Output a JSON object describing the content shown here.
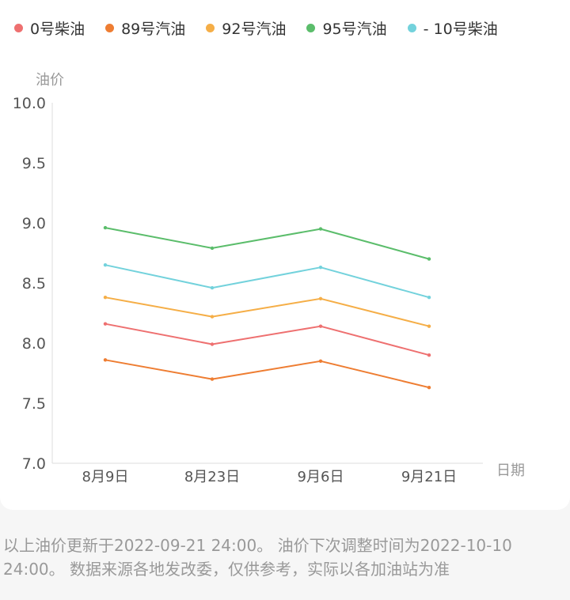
{
  "chart_data": {
    "type": "line",
    "xlabel": "日期",
    "ylabel": "油价",
    "ylim": [
      7.0,
      10.0
    ],
    "yticks": [
      "7.0",
      "7.5",
      "8.0",
      "8.5",
      "9.0",
      "9.5",
      "10.0"
    ],
    "categories": [
      "8月9日",
      "8月23日",
      "9月6日",
      "9月21日"
    ],
    "legend_position": "top",
    "series": [
      {
        "name": "0号柴油",
        "color": "#ee7070",
        "values": [
          8.16,
          7.99,
          8.14,
          7.9
        ]
      },
      {
        "name": "89号汽油",
        "color": "#ee7d32",
        "values": [
          7.86,
          7.7,
          7.85,
          7.63
        ]
      },
      {
        "name": "92号汽油",
        "color": "#f5ae47",
        "values": [
          8.38,
          8.22,
          8.37,
          8.14
        ]
      },
      {
        "name": "95号汽油",
        "color": "#5bbd6b",
        "values": [
          8.96,
          8.79,
          8.95,
          8.7
        ]
      },
      {
        "name": "- 10号柴油",
        "color": "#73d2dc",
        "values": [
          8.65,
          8.46,
          8.63,
          8.38
        ]
      }
    ]
  },
  "footnote": "以上油价更新于2022-09-21 24:00。 油价下次调整时间为2022-10-10 24:00。 数据来源各地发改委，仅供参考，实际以各加油站为准"
}
